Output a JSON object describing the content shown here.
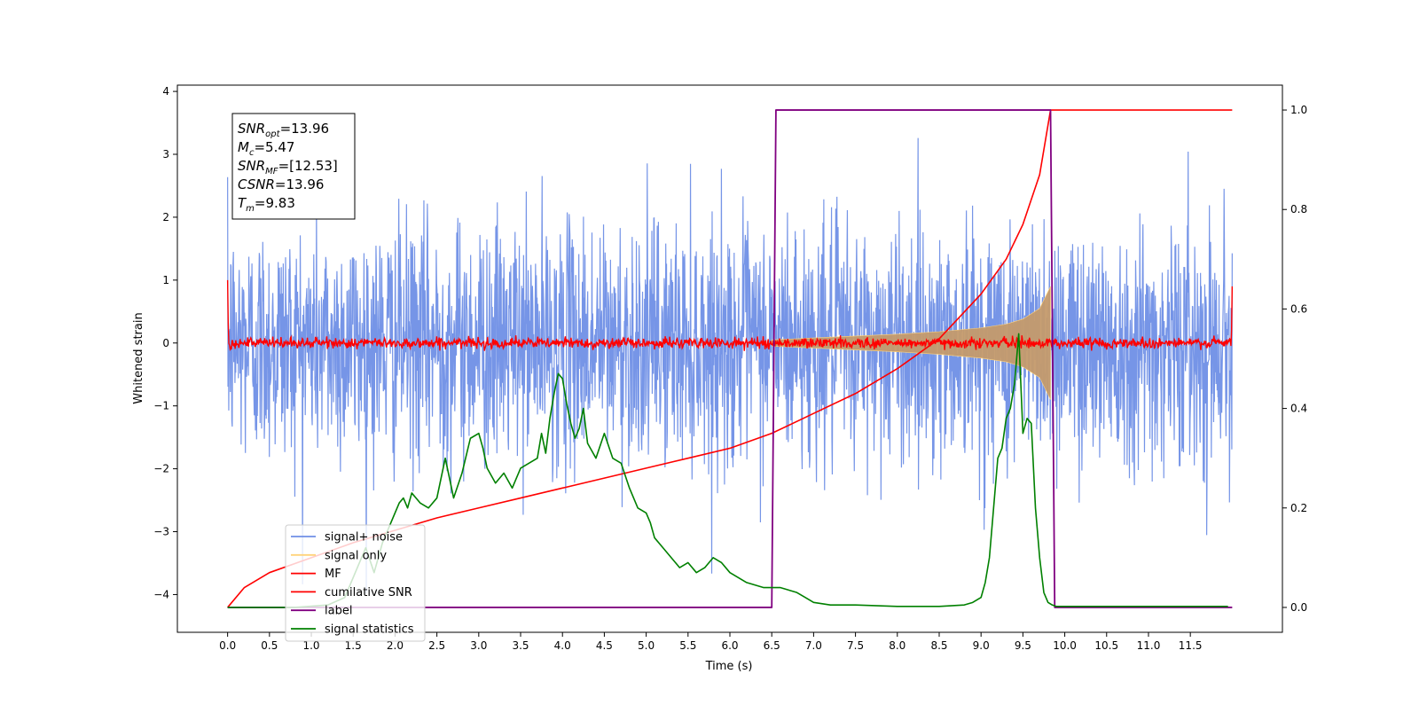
{
  "chart_data": {
    "type": "line",
    "xlabel": "Time (s)",
    "ylabel": "Whitened strain",
    "xlim": [
      -0.6,
      12.6
    ],
    "ylim": [
      -4.6,
      4.1
    ],
    "y2lim": [
      -0.05,
      1.05
    ],
    "x_ticks": [
      0.0,
      0.5,
      1.0,
      1.5,
      2.0,
      2.5,
      3.0,
      3.5,
      4.0,
      4.5,
      5.0,
      5.5,
      6.0,
      6.5,
      7.0,
      7.5,
      8.0,
      8.5,
      9.0,
      9.5,
      10.0,
      10.5,
      11.0,
      11.5
    ],
    "x_tick_labels": [
      "0.0",
      "0.5",
      "1.0",
      "1.5",
      "2.0",
      "2.5",
      "3.0",
      "3.5",
      "4.0",
      "4.5",
      "5.0",
      "5.5",
      "6.0",
      "6.5",
      "7.0",
      "7.5",
      "8.0",
      "8.5",
      "9.0",
      "9.5",
      "10.0",
      "10.5",
      "11.0",
      "11.5"
    ],
    "y_ticks": [
      4,
      3,
      2,
      1,
      0,
      -1,
      -2,
      -3,
      -4
    ],
    "y_tick_labels": [
      "4",
      "3",
      "2",
      "1",
      "0",
      "−1",
      "−2",
      "−3",
      "−4"
    ],
    "y2_ticks": [
      1.0,
      0.8,
      0.6,
      0.4,
      0.2,
      0.0
    ],
    "y2_tick_labels": [
      "1.0",
      "0.8",
      "0.6",
      "0.4",
      "0.2",
      "0.0"
    ],
    "grid": false,
    "legend_position": "bottom-left",
    "legend": [
      {
        "label": "signal+ noise",
        "color": "#6f8fe6"
      },
      {
        "label": "signal only",
        "color": "#ffd37a"
      },
      {
        "label": "MF",
        "color": "#ff0000"
      },
      {
        "label": "cumilative SNR",
        "color": "#ff0000"
      },
      {
        "label": "label",
        "color": "#800080"
      },
      {
        "label": "signal statistics",
        "color": "#008000"
      }
    ],
    "annotation": [
      {
        "sym": "SNR",
        "sub": "opt",
        "val": "=13.96"
      },
      {
        "sym": "M",
        "sub": "c",
        "val": "=5.47"
      },
      {
        "sym": "SNR",
        "sub": "MF",
        "val": "=[12.53]"
      },
      {
        "sym": "CSNR",
        "sub": "",
        "val": "=13.96"
      },
      {
        "sym": "T",
        "sub": "m",
        "val": "=9.83"
      }
    ],
    "series": [
      {
        "name": "signal+ noise",
        "axis": "left",
        "color": "#6f8fe6",
        "description": "whitened noise samples, approx unit variance, 0 to 12 s",
        "x_range": [
          0.0,
          12.0
        ],
        "envelope_max": 3.8,
        "envelope_min": -4.1
      },
      {
        "name": "signal only",
        "axis": "left",
        "envelope": {
          "x": [
            6.5,
            7.0,
            7.5,
            8.0,
            8.5,
            9.0,
            9.3,
            9.5,
            9.7,
            9.83
          ],
          "amp": [
            0.05,
            0.08,
            0.11,
            0.14,
            0.18,
            0.24,
            0.3,
            0.38,
            0.55,
            0.9
          ]
        }
      },
      {
        "name": "MF",
        "axis": "left",
        "color": "#ff0000",
        "x_range": [
          0.0,
          12.0
        ],
        "baseline": 0.0,
        "noise_amp": 0.07,
        "edge_values": [
          1.0,
          0.9
        ]
      },
      {
        "name": "cumilative SNR",
        "axis": "right",
        "color": "#ff0000",
        "x": [
          0.0,
          0.2,
          0.5,
          1.0,
          1.5,
          2.0,
          2.5,
          3.0,
          3.5,
          4.0,
          4.5,
          5.0,
          5.5,
          6.0,
          6.5,
          7.0,
          7.5,
          8.0,
          8.5,
          9.0,
          9.3,
          9.5,
          9.7,
          9.83,
          9.84,
          12.0
        ],
        "y": [
          0.0,
          0.04,
          0.07,
          0.1,
          0.13,
          0.155,
          0.18,
          0.2,
          0.22,
          0.24,
          0.26,
          0.28,
          0.3,
          0.32,
          0.35,
          0.39,
          0.43,
          0.48,
          0.54,
          0.63,
          0.7,
          0.77,
          0.87,
          1.0,
          1.0,
          1.0
        ]
      },
      {
        "name": "label",
        "axis": "right",
        "color": "#800080",
        "x": [
          0.0,
          6.5,
          6.55,
          9.83,
          9.88,
          12.0
        ],
        "y": [
          0.0,
          0.0,
          1.0,
          1.0,
          0.0,
          0.0
        ]
      },
      {
        "name": "signal statistics",
        "axis": "right",
        "color": "#008000",
        "x": [
          0.0,
          0.4,
          0.8,
          1.2,
          1.4,
          1.55,
          1.65,
          1.75,
          1.85,
          1.95,
          2.05,
          2.1,
          2.15,
          2.2,
          2.3,
          2.4,
          2.5,
          2.6,
          2.7,
          2.8,
          2.9,
          3.0,
          3.05,
          3.1,
          3.2,
          3.3,
          3.4,
          3.5,
          3.6,
          3.7,
          3.75,
          3.8,
          3.85,
          3.9,
          3.95,
          4.0,
          4.05,
          4.1,
          4.15,
          4.2,
          4.25,
          4.3,
          4.4,
          4.5,
          4.6,
          4.7,
          4.8,
          4.9,
          5.0,
          5.05,
          5.1,
          5.2,
          5.3,
          5.4,
          5.5,
          5.6,
          5.7,
          5.8,
          5.9,
          6.0,
          6.2,
          6.4,
          6.6,
          6.8,
          6.9,
          7.0,
          7.2,
          7.5,
          8.0,
          8.5,
          8.8,
          8.9,
          9.0,
          9.05,
          9.1,
          9.15,
          9.2,
          9.25,
          9.3,
          9.35,
          9.4,
          9.45,
          9.5,
          9.55,
          9.6,
          9.65,
          9.7,
          9.75,
          9.8,
          9.85,
          9.9,
          10.5,
          11.0,
          11.5,
          11.95
        ],
        "y": [
          0.0,
          0.0,
          0.0,
          0.005,
          0.02,
          0.08,
          0.12,
          0.07,
          0.13,
          0.17,
          0.21,
          0.22,
          0.2,
          0.23,
          0.21,
          0.2,
          0.22,
          0.3,
          0.22,
          0.27,
          0.34,
          0.35,
          0.32,
          0.28,
          0.25,
          0.27,
          0.24,
          0.28,
          0.29,
          0.3,
          0.35,
          0.31,
          0.38,
          0.43,
          0.47,
          0.46,
          0.41,
          0.37,
          0.34,
          0.36,
          0.4,
          0.33,
          0.3,
          0.35,
          0.3,
          0.29,
          0.24,
          0.2,
          0.19,
          0.17,
          0.14,
          0.12,
          0.1,
          0.08,
          0.09,
          0.07,
          0.08,
          0.1,
          0.09,
          0.07,
          0.05,
          0.04,
          0.04,
          0.03,
          0.02,
          0.01,
          0.005,
          0.005,
          0.002,
          0.002,
          0.005,
          0.01,
          0.02,
          0.05,
          0.1,
          0.2,
          0.3,
          0.32,
          0.38,
          0.4,
          0.45,
          0.55,
          0.35,
          0.38,
          0.37,
          0.2,
          0.1,
          0.03,
          0.01,
          0.005,
          0.002,
          0.002,
          0.002,
          0.002,
          0.002
        ]
      }
    ]
  }
}
